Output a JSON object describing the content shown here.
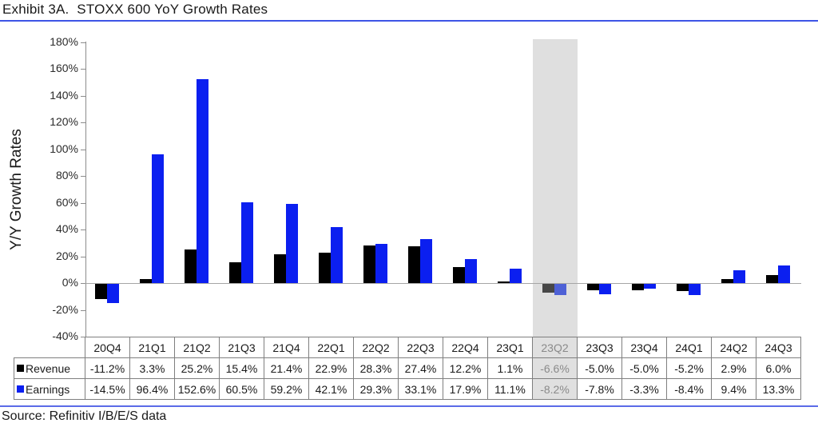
{
  "title": "Exhibit 3A.  STOXX 600 YoY Growth Rates",
  "source": "Source: Refinitiv I/B/E/S data",
  "colors": {
    "title_rule": "#3d55e6",
    "source_rule": "#5b6be8",
    "axis_line": "#8c8c8c",
    "highlight_band": "#dfdfdf",
    "revenue_bar": "#000000",
    "earnings_bar": "#0b1ff0",
    "revenue_bar_muted": "#474747",
    "earnings_bar_muted": "#4e61d6"
  },
  "chart_data": {
    "type": "bar",
    "title": "STOXX 600 YoY Growth Rates",
    "ylabel": "Y/Y Growth Rates",
    "xlabel": "",
    "ylim": [
      -40,
      180
    ],
    "ytick_step": 20,
    "ytick_labels": [
      "180%",
      "160%",
      "140%",
      "120%",
      "100%",
      "80%",
      "60%",
      "40%",
      "20%",
      "0%",
      "-20%",
      "-40%"
    ],
    "grid": false,
    "legend_position": "table-left",
    "highlight_category": "23Q2",
    "categories": [
      "20Q4",
      "21Q1",
      "21Q2",
      "21Q3",
      "21Q4",
      "22Q1",
      "22Q2",
      "22Q3",
      "22Q4",
      "23Q1",
      "23Q2",
      "23Q3",
      "23Q4",
      "24Q1",
      "24Q2",
      "24Q3"
    ],
    "series": [
      {
        "name": "Revenue",
        "color": "#000000",
        "muted_color": "#474747",
        "values": [
          -11.2,
          3.3,
          25.2,
          15.4,
          21.4,
          22.9,
          28.3,
          27.4,
          12.2,
          1.1,
          -6.6,
          -5.0,
          -5.0,
          -5.2,
          2.9,
          6.0
        ],
        "display": [
          "-11.2%",
          "3.3%",
          "25.2%",
          "15.4%",
          "21.4%",
          "22.9%",
          "28.3%",
          "27.4%",
          "12.2%",
          "1.1%",
          "-6.6%",
          "-5.0%",
          "-5.0%",
          "-5.2%",
          "2.9%",
          "6.0%"
        ]
      },
      {
        "name": "Earnings",
        "color": "#0b1ff0",
        "muted_color": "#4e61d6",
        "values": [
          -14.5,
          96.4,
          152.6,
          60.5,
          59.2,
          42.1,
          29.3,
          33.1,
          17.9,
          11.1,
          -8.2,
          -7.8,
          -3.3,
          -8.4,
          9.4,
          13.3
        ],
        "display": [
          "-14.5%",
          "96.4%",
          "152.6%",
          "60.5%",
          "59.2%",
          "42.1%",
          "29.3%",
          "33.1%",
          "17.9%",
          "11.1%",
          "-8.2%",
          "-7.8%",
          "-3.3%",
          "-8.4%",
          "9.4%",
          "13.3%"
        ]
      }
    ]
  }
}
